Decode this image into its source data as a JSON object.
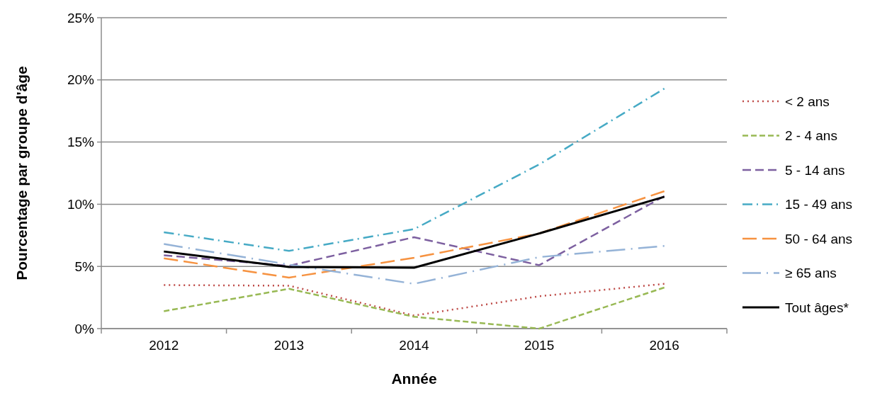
{
  "chart_data": {
    "type": "line",
    "xlabel": "Année",
    "ylabel": "Pourcentage par groupe d'âge",
    "categories": [
      "2012",
      "2013",
      "2014",
      "2015",
      "2016"
    ],
    "ylim": [
      0,
      25
    ],
    "yticks": [
      {
        "value": 0,
        "label": "0%"
      },
      {
        "value": 5,
        "label": "5%"
      },
      {
        "value": 10,
        "label": "10%"
      },
      {
        "value": 15,
        "label": "15%"
      },
      {
        "value": 20,
        "label": "20%"
      },
      {
        "value": 25,
        "label": "25%"
      }
    ],
    "grid": "y",
    "legend": "right",
    "marker": "none",
    "series": [
      {
        "name": "< 2 ans",
        "color": "#be4b48",
        "line_style": "dotted",
        "values": [
          3.5,
          3.45,
          1.05,
          2.6,
          3.6
        ]
      },
      {
        "name": "2 - 4 ans",
        "color": "#98b954",
        "line_style": "dashed",
        "values": [
          1.4,
          3.2,
          0.95,
          0,
          3.3
        ]
      },
      {
        "name": "5 - 14 ans",
        "color": "#7d60a0",
        "line_style": "dashed",
        "values": [
          5.9,
          5.05,
          7.35,
          5.1,
          10.65
        ]
      },
      {
        "name": "15 - 49 ans",
        "color": "#46aac5",
        "line_style": "dashed",
        "values": [
          7.75,
          6.25,
          8.0,
          13.2,
          19.3
        ]
      },
      {
        "name": "50 - 64 ans",
        "color": "#f69240",
        "line_style": "dashed",
        "values": [
          5.65,
          4.1,
          5.7,
          7.65,
          11.05
        ]
      },
      {
        "name": "≥ 65 ans",
        "color": "#95b3d7",
        "line_style": "dashed",
        "values": [
          6.8,
          5.15,
          3.6,
          5.75,
          6.65
        ]
      },
      {
        "name": "Tout âges*",
        "color": "#000000",
        "line_style": "solid",
        "values": [
          6.2,
          4.95,
          4.9,
          7.65,
          10.6
        ]
      }
    ]
  }
}
